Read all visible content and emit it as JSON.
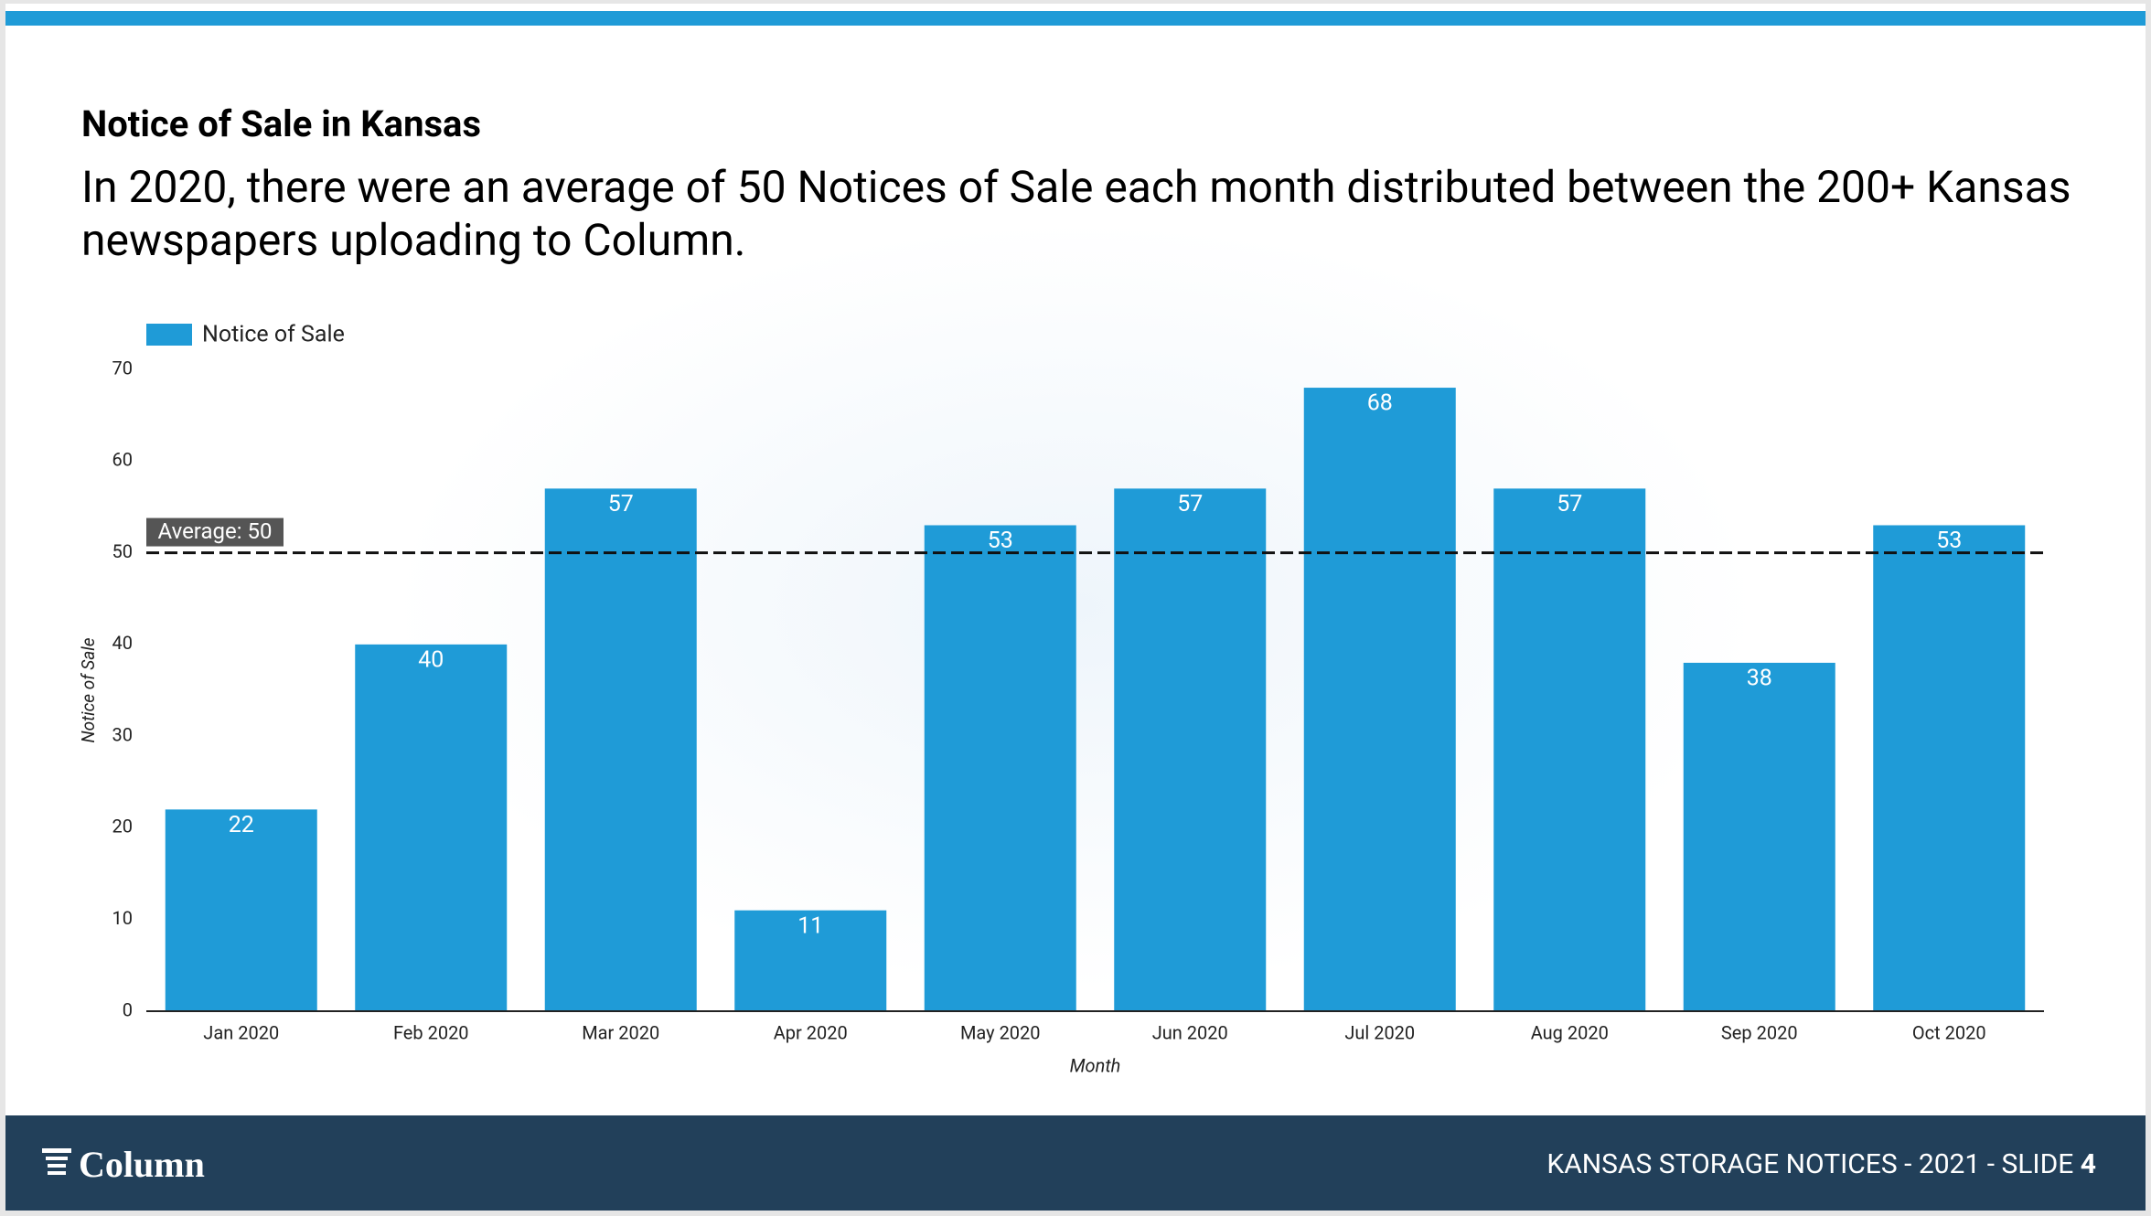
{
  "header": {
    "title": "Notice of Sale in Kansas",
    "subtitle": "In 2020, there were an average of 50 Notices of Sale each month distributed between the 200+ Kansas newspapers uploading to Column."
  },
  "chart_data": {
    "type": "bar",
    "categories": [
      "Jan 2020",
      "Feb 2020",
      "Mar 2020",
      "Apr 2020",
      "May 2020",
      "Jun 2020",
      "Jul 2020",
      "Aug 2020",
      "Sep 2020",
      "Oct 2020"
    ],
    "series": [
      {
        "name": "Notice of Sale",
        "color": "#1f9bd7",
        "values": [
          22,
          40,
          57,
          11,
          53,
          57,
          68,
          57,
          38,
          53
        ]
      }
    ],
    "x_label": "Month",
    "y_label": "Notice of Sale",
    "ylim": [
      0,
      70
    ],
    "yticks": [
      0,
      10,
      20,
      30,
      40,
      50,
      60,
      70
    ],
    "grid": false,
    "legend": "top-left",
    "reference_line": {
      "value": 50,
      "label": "Average: 50"
    }
  },
  "footer": {
    "logo_text": "Column",
    "text": "KANSAS STORAGE NOTICES - 2021 - SLIDE",
    "slide_number": "4"
  }
}
